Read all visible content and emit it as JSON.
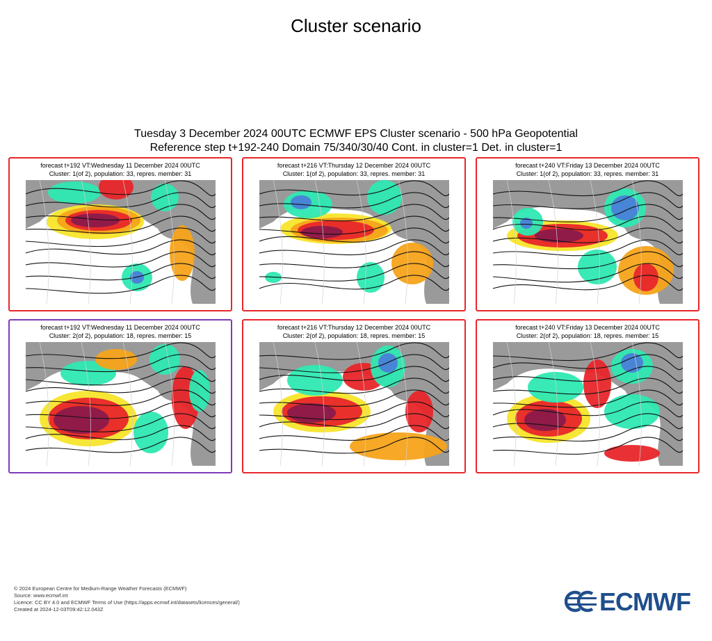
{
  "page_title": "Cluster scenario",
  "header": {
    "line1": "Tuesday 3 December 2024 00UTC ECMWF EPS Cluster scenario - 500 hPa Geopotential",
    "line2": "Reference step t+192-240 Domain 75/340/30/40 Cont. in cluster=1 Det. in cluster=1"
  },
  "colors": {
    "cluster_1_frame": "#e8262a",
    "cluster_2_first_frame": "#7d3ab8",
    "ocean_background": "#ffffff",
    "land_gray": "#9a9a9a",
    "positive_anomaly_strong": "#8b1a4a",
    "positive_anomaly": "#e8262a",
    "positive_anomaly_weak": "#f5a31a",
    "positive_anomaly_faint": "#f7e52a",
    "negative_anomaly": "#2ee8b2",
    "negative_anomaly_strong": "#4a7fd8",
    "logo_blue": "#1f4e8c"
  },
  "panels": [
    {
      "line1": "forecast t+192 VT:Wednesday 11 December 2024 00UTC",
      "line2": "Cluster: 1(of 2), population: 33, repres. member: 31"
    },
    {
      "line1": "forecast t+216 VT:Thursday 12 December 2024 00UTC",
      "line2": "Cluster: 1(of 2), population: 33, repres. member: 31"
    },
    {
      "line1": "forecast t+240 VT:Friday 13 December 2024 00UTC",
      "line2": "Cluster: 1(of 2), population: 33, repres. member: 31"
    },
    {
      "line1": "forecast t+192 VT:Wednesday 11 December 2024 00UTC",
      "line2": "Cluster: 2(of 2), population: 18, repres. member: 15"
    },
    {
      "line1": "forecast t+216 VT:Thursday 12 December 2024 00UTC",
      "line2": "Cluster: 2(of 2), population: 18, repres. member: 15"
    },
    {
      "line1": "forecast t+240 VT:Friday 13 December 2024 00UTC",
      "line2": "Cluster: 2(of 2), population: 18, repres. member: 15"
    }
  ],
  "footer": {
    "line1": "© 2024 European Centre for Medium-Range Weather Forecasts (ECMWF)",
    "line2": "Source: www.ecmwf.int",
    "line3": "Licence: CC BY 4.0 and ECMWF Terms of Use (https://apps.ecmwf.int/datasets/licences/general/)",
    "line4": "Created at 2024-12-03T09:42:12.043Z"
  },
  "logo": {
    "text": "ECMWF"
  }
}
